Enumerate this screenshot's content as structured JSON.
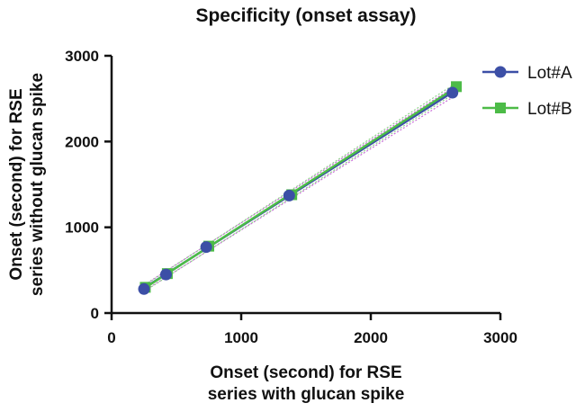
{
  "chart_data": {
    "type": "scatter",
    "title": "Specificity (onset assay)",
    "xlabel_lines": [
      "Onset (second) for RSE",
      "series with glucan spike"
    ],
    "ylabel_lines": [
      "Onset (second) for RSE",
      "series without glucan spike"
    ],
    "xlim": [
      0,
      3000
    ],
    "ylim": [
      0,
      3000
    ],
    "xticks": [
      0,
      1000,
      2000,
      3000
    ],
    "yticks": [
      0,
      1000,
      2000,
      3000
    ],
    "xtick_labels": [
      "0",
      "1000",
      "2000",
      "3000"
    ],
    "ytick_labels": [
      "0",
      "1000",
      "2000",
      "3000"
    ],
    "grid": false,
    "legend_position": "top-right",
    "series": [
      {
        "name": "Lot#A",
        "marker": "circle",
        "color": "#3c4fa6",
        "x": [
          250,
          420,
          730,
          1370,
          2630
        ],
        "y": [
          280,
          450,
          770,
          1370,
          2570
        ]
      },
      {
        "name": "Lot#B",
        "marker": "square",
        "color": "#4cbb47",
        "x": [
          260,
          430,
          750,
          1390,
          2660
        ],
        "y": [
          300,
          460,
          780,
          1380,
          2640
        ]
      }
    ]
  }
}
